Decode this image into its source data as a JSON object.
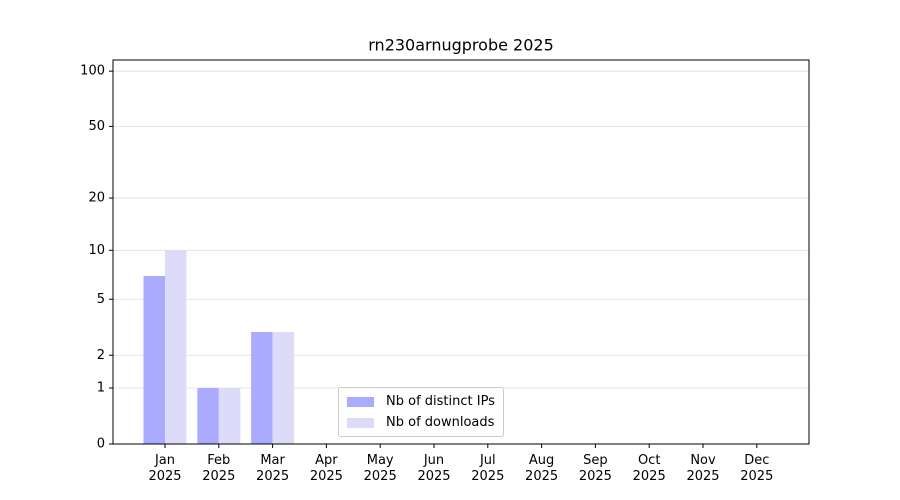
{
  "chart_data": {
    "type": "bar",
    "title": "rn230arnugprobe 2025",
    "categories": [
      "Jan\n2025",
      "Feb\n2025",
      "Mar\n2025",
      "Apr\n2025",
      "May\n2025",
      "Jun\n2025",
      "Jul\n2025",
      "Aug\n2025",
      "Sep\n2025",
      "Oct\n2025",
      "Nov\n2025",
      "Dec\n2025"
    ],
    "series": [
      {
        "name": "Nb of distinct IPs",
        "color": "#aaaaff",
        "values": [
          7,
          1,
          3,
          0,
          0,
          0,
          0,
          0,
          0,
          0,
          0,
          0
        ]
      },
      {
        "name": "Nb of downloads",
        "color": "#dcdcfa",
        "values": [
          10,
          1,
          3,
          0,
          0,
          0,
          0,
          0,
          0,
          0,
          0,
          0
        ]
      }
    ],
    "yscale": "log1p",
    "ylim": [
      0,
      115
    ],
    "yticks": [
      0,
      1,
      2,
      5,
      10,
      20,
      50,
      100
    ],
    "grid": true,
    "legend": "lower center"
  }
}
